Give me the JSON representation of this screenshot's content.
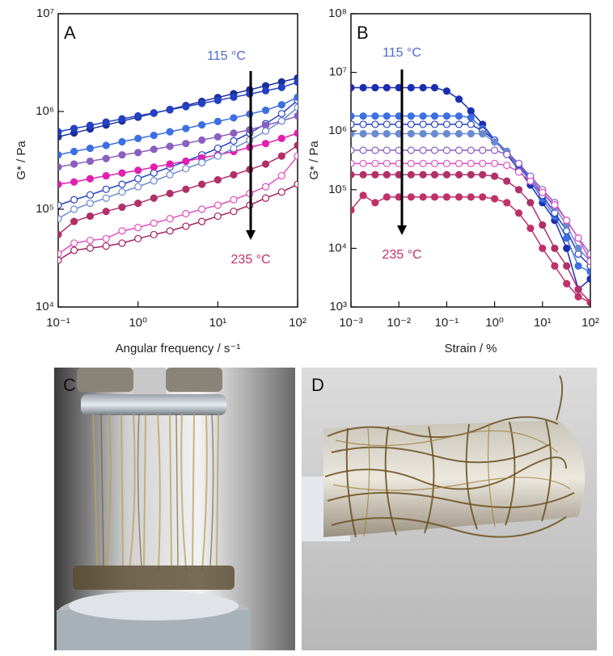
{
  "chart_data": [
    {
      "type": "line",
      "panel_label": "A",
      "xlabel": "Angular frequency / s⁻¹",
      "ylabel": "G* / Pa",
      "xscale": "log",
      "yscale": "log",
      "xlim": [
        0.1,
        100
      ],
      "ylim": [
        10000,
        10000000
      ],
      "xticks": [
        {
          "value": 0.1,
          "label": "10⁻¹"
        },
        {
          "value": 1,
          "label": "10⁰"
        },
        {
          "value": 10,
          "label": "10¹"
        },
        {
          "value": 100,
          "label": "10²"
        }
      ],
      "yticks": [
        {
          "value": 10000,
          "label": "10⁴"
        },
        {
          "value": 100000,
          "label": "10⁵"
        },
        {
          "value": 1000000,
          "label": "10⁶"
        },
        {
          "value": 10000000,
          "label": "10⁷"
        }
      ],
      "annotations": [
        {
          "text": "115 °C",
          "color": "#4a6ad0"
        },
        {
          "text": "235 °C",
          "color": "#c0306a"
        }
      ],
      "x": [
        0.1,
        0.158,
        0.251,
        0.398,
        0.631,
        1,
        1.58,
        2.51,
        3.98,
        6.31,
        10,
        15.8,
        25.1,
        39.8,
        63.1,
        100
      ],
      "series": [
        {
          "color": "#1a2f9e",
          "marker": "filled",
          "values": [
            550000,
            603000,
            662000,
            726000,
            797000,
            874000,
            959000,
            1050000,
            1150000,
            1270000,
            1390000,
            1520000,
            1670000,
            1830000,
            2010000,
            2200000
          ]
        },
        {
          "color": "#2440c0",
          "marker": "filled",
          "values": [
            620000,
            670000,
            720000,
            780000,
            840000,
            900000,
            970000,
            1040000,
            1120000,
            1210000,
            1300000,
            1400000,
            1510000,
            1630000,
            1760000,
            2000000
          ]
        },
        {
          "color": "#2440c0",
          "marker": "open",
          "values": [
            110000,
            125000,
            140000,
            160000,
            180000,
            205000,
            235000,
            270000,
            310000,
            360000,
            420000,
            500000,
            600000,
            750000,
            950000,
            1300000
          ]
        },
        {
          "color": "#3d6fe0",
          "marker": "filled",
          "values": [
            360000,
            390000,
            420000,
            450000,
            490000,
            530000,
            570000,
            620000,
            670000,
            730000,
            790000,
            860000,
            940000,
            1030000,
            1170000,
            1400000
          ]
        },
        {
          "color": "#8a5fc0",
          "marker": "filled",
          "values": [
            270000,
            290000,
            310000,
            330000,
            360000,
            380000,
            410000,
            440000,
            470000,
            510000,
            550000,
            600000,
            650000,
            720000,
            800000,
            900000
          ]
        },
        {
          "color": "#e020b0",
          "marker": "filled",
          "values": [
            180000,
            190000,
            205000,
            220000,
            235000,
            250000,
            270000,
            290000,
            310000,
            335000,
            360000,
            390000,
            430000,
            470000,
            530000,
            600000
          ]
        },
        {
          "color": "#6a8ad0",
          "marker": "open",
          "values": [
            80000,
            100000,
            115000,
            130000,
            150000,
            170000,
            195000,
            225000,
            260000,
            300000,
            350000,
            420000,
            510000,
            630000,
            800000,
            1100000
          ]
        },
        {
          "color": "#b0306a",
          "marker": "filled",
          "values": [
            55000,
            75000,
            85000,
            95000,
            105000,
            115000,
            130000,
            145000,
            160000,
            180000,
            200000,
            225000,
            255000,
            290000,
            350000,
            450000
          ]
        },
        {
          "color": "#e050c0",
          "marker": "open",
          "values": [
            35000,
            45000,
            48000,
            50000,
            60000,
            65000,
            72000,
            80000,
            90000,
            100000,
            110000,
            125000,
            145000,
            170000,
            220000,
            350000
          ]
        },
        {
          "color": "#a02060",
          "marker": "open",
          "values": [
            30000,
            38000,
            40000,
            42000,
            45000,
            50000,
            55000,
            60000,
            67000,
            75000,
            85000,
            95000,
            110000,
            130000,
            150000,
            180000
          ]
        }
      ]
    },
    {
      "type": "line",
      "panel_label": "B",
      "xlabel": "Strain / %",
      "ylabel": "G* / Pa",
      "xscale": "log",
      "yscale": "log",
      "xlim": [
        0.001,
        100
      ],
      "ylim": [
        1000,
        100000000
      ],
      "xticks": [
        {
          "value": 0.001,
          "label": "10⁻³"
        },
        {
          "value": 0.01,
          "label": "10⁻²"
        },
        {
          "value": 0.1,
          "label": "10⁻¹"
        },
        {
          "value": 1,
          "label": "10⁰"
        },
        {
          "value": 10,
          "label": "10¹"
        },
        {
          "value": 100,
          "label": "10²"
        }
      ],
      "yticks": [
        {
          "value": 1000,
          "label": "10³"
        },
        {
          "value": 10000,
          "label": "10⁴"
        },
        {
          "value": 100000,
          "label": "10⁵"
        },
        {
          "value": 1000000,
          "label": "10⁶"
        },
        {
          "value": 10000000,
          "label": "10⁷"
        },
        {
          "value": 100000000,
          "label": "10⁸"
        }
      ],
      "annotations": [
        {
          "text": "115 °C",
          "color": "#4a6ad0"
        },
        {
          "text": "235 °C",
          "color": "#c0306a"
        }
      ],
      "x": [
        0.001,
        0.0018,
        0.0032,
        0.0056,
        0.01,
        0.018,
        0.032,
        0.056,
        0.1,
        0.18,
        0.32,
        0.56,
        1,
        1.8,
        3.2,
        5.6,
        10,
        18,
        32,
        56,
        100
      ],
      "series": [
        {
          "color": "#1a2fb0",
          "marker": "filled",
          "values": [
            5500000,
            5500000,
            5500000,
            5500000,
            5500000,
            5500000,
            5500000,
            5500000,
            4800000,
            3500000,
            2200000,
            1300000,
            700000,
            400000,
            220000,
            120000,
            60000,
            30000,
            10000,
            2000,
            3000
          ]
        },
        {
          "color": "#3d6fe0",
          "marker": "filled",
          "values": [
            1800000,
            1800000,
            1800000,
            1800000,
            1800000,
            1800000,
            1800000,
            1800000,
            1800000,
            1800000,
            1700000,
            1100000,
            700000,
            420000,
            250000,
            140000,
            70000,
            35000,
            15000,
            5000,
            4000
          ]
        },
        {
          "color": "#2440c0",
          "marker": "open",
          "values": [
            1300000,
            1300000,
            1300000,
            1300000,
            1300000,
            1300000,
            1300000,
            1300000,
            1300000,
            1300000,
            1300000,
            1000000,
            700000,
            450000,
            270000,
            150000,
            80000,
            40000,
            20000,
            8000,
            5000
          ]
        },
        {
          "color": "#6a8ad0",
          "marker": "filled",
          "values": [
            900000,
            900000,
            900000,
            900000,
            900000,
            900000,
            900000,
            900000,
            900000,
            900000,
            900000,
            900000,
            650000,
            450000,
            280000,
            160000,
            90000,
            50000,
            25000,
            10000,
            6000
          ]
        },
        {
          "color": "#8a5fc0",
          "marker": "open",
          "values": [
            470000,
            470000,
            470000,
            470000,
            470000,
            470000,
            470000,
            470000,
            470000,
            470000,
            470000,
            470000,
            470000,
            400000,
            280000,
            170000,
            100000,
            60000,
            30000,
            15000,
            8000
          ]
        },
        {
          "color": "#e050c0",
          "marker": "open",
          "values": [
            280000,
            280000,
            280000,
            280000,
            280000,
            280000,
            280000,
            280000,
            280000,
            280000,
            280000,
            280000,
            280000,
            260000,
            200000,
            140000,
            90000,
            55000,
            30000,
            15000,
            6000
          ]
        },
        {
          "color": "#b0306a",
          "marker": "filled",
          "values": [
            180000,
            180000,
            180000,
            180000,
            180000,
            180000,
            180000,
            180000,
            180000,
            180000,
            180000,
            180000,
            170000,
            140000,
            100000,
            60000,
            25000,
            10000,
            5000,
            2000,
            1200
          ]
        },
        {
          "color": "#c0306a",
          "marker": "filled",
          "values": [
            45000,
            80000,
            60000,
            75000,
            75000,
            75000,
            75000,
            75000,
            75000,
            75000,
            75000,
            75000,
            70000,
            60000,
            40000,
            22000,
            10000,
            5000,
            2500,
            1500,
            1200
          ]
        }
      ]
    }
  ],
  "panels": [
    {
      "label": "C"
    },
    {
      "label": "D"
    }
  ]
}
